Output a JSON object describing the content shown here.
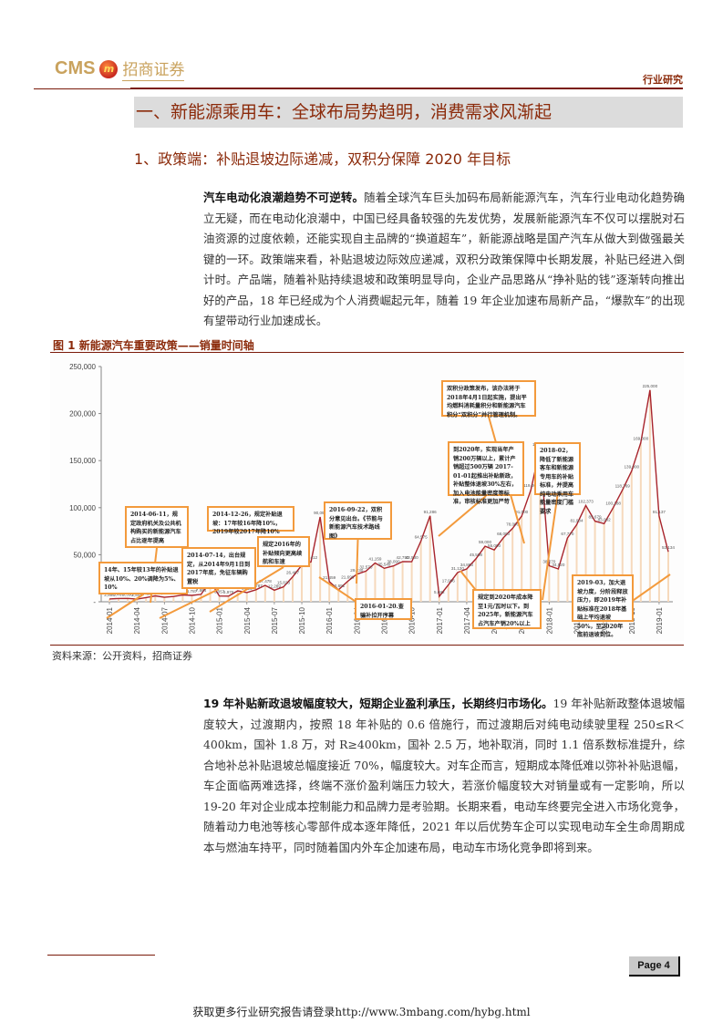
{
  "header": {
    "logo_latin": "CMS",
    "logo_mark": "m",
    "logo_cn": "招商证券",
    "category": "行业研究"
  },
  "section_title": "一、新能源乘用车：全球布局势趋明，消费需求风渐起",
  "sub_title": "1、政策端：补贴退坡边际递减，双积分保障 2020 年目标",
  "paragraph1": {
    "lead": "汽车电动化浪潮趋势不可逆转。",
    "body": "随着全球汽车巨头加码布局新能源汽车，汽车行业电动化趋势确立无疑，而在电动化浪潮中，中国已经具备较强的先发优势，发展新能源汽车不仅可以摆脱对石油资源的过度依赖，还能实现自主品牌的“换道超车”，新能源战略是国产汽车从做大到做强最关键的一环。政策端来看，补贴退坡边际效应递减，双积分政策保障中长期发展，补贴已经进入倒计时。产品端，随着补贴持续退坡和政策明显导向，企业产品思路从“挣补贴的钱”逐渐转向推出好的产品，18 年已经成为个人消费崛起元年，随着 19 年企业加速布局新产品，“爆款车”的出现有望带动行业加速成长。"
  },
  "figure": {
    "title": "图 1  新能源汽车重要政策——销量时间轴",
    "source": "资料来源：公开资料，招商证券"
  },
  "chart_data": {
    "type": "bar+line",
    "title": "新能源汽车重要政策——销量时间轴",
    "xlabel": "",
    "ylabel": "",
    "ylim": [
      0,
      250000
    ],
    "yticks": [
      "-",
      "50,000",
      "100,000",
      "150,000",
      "200,000",
      "250,000"
    ],
    "xtick_labels": [
      "2014-01",
      "2014-04",
      "2014-07",
      "2014-10",
      "2015-01",
      "2015-04",
      "2015-07",
      "2015-10",
      "2016-01",
      "2016-04",
      "2016-07",
      "2016-10",
      "2017-01",
      "2017-04",
      "2017-07",
      "2017-10",
      "2018-01",
      "2018-04",
      "2018-07",
      "2018-10",
      "2019-01"
    ],
    "x": [
      "2014-01",
      "2014-02",
      "2014-03",
      "2014-04",
      "2014-05",
      "2014-06",
      "2014-07",
      "2014-08",
      "2014-09",
      "2014-10",
      "2014-11",
      "2014-12",
      "2015-01",
      "2015-02",
      "2015-03",
      "2015-04",
      "2015-05",
      "2015-06",
      "2015-07",
      "2015-08",
      "2015-09",
      "2015-10",
      "2015-11",
      "2015-12",
      "2016-01",
      "2016-02",
      "2016-03",
      "2016-04",
      "2016-05",
      "2016-06",
      "2016-07",
      "2016-08",
      "2016-09",
      "2016-10",
      "2016-11",
      "2016-12",
      "2017-01",
      "2017-02",
      "2017-03",
      "2017-04",
      "2017-05",
      "2017-06",
      "2017-07",
      "2017-08",
      "2017-09",
      "2017-10",
      "2017-11",
      "2017-12",
      "2018-01",
      "2018-02",
      "2018-03",
      "2018-04",
      "2018-05",
      "2018-06",
      "2018-07",
      "2018-08",
      "2018-09",
      "2018-10",
      "2018-11",
      "2018-12",
      "2019-01",
      "2019-02"
    ],
    "series": [
      {
        "name": "新能源汽车月销量",
        "values": [
          2996,
          3469,
          3558,
          2848,
          4418,
          6260,
          4712,
          5613,
          7152,
          6787,
          7864,
          21815,
          6057,
          5976,
          11651,
          9806,
          12787,
          17478,
          12289,
          15823,
          26487,
          38903,
          42412,
          90095,
          21459,
          12691,
          21696,
          29230,
          32570,
          41159,
          35549,
          38090,
          42750,
          42530,
          64575,
          91286,
          5682,
          17996,
          31120,
          34863,
          45598,
          59000,
          55000,
          68000,
          78000,
          91000,
          119000,
          163000,
          38270,
          34920,
          67770,
          81904,
          102373,
          85679,
          83082,
          100188,
          118769,
          139000,
          169000,
          225000,
          91137,
          53134
        ]
      }
    ],
    "data_labels": [
      "2,996",
      "3,469",
      "3,558",
      "2,848",
      "4,418",
      "6,260",
      "4,712",
      "5,613",
      "7,152",
      "6,787",
      "7,864",
      "21,815",
      "6,057",
      "5,976",
      "11,651",
      "9,806",
      "12,787",
      "17,478",
      "12,289",
      "15,823",
      "26,487",
      "38,903",
      "42,412",
      "90,095",
      "21,459",
      "12,691",
      "21,696",
      "29,230",
      "32,570",
      "41,159",
      "35,549",
      "38,090",
      "42,750",
      "42,530",
      "64,575",
      "91,286",
      "5,682",
      "17,996",
      "31,120",
      "34,863",
      "45,598",
      "59,000",
      "55,000",
      "68,000",
      "78,000",
      "91,000",
      "119,000",
      "163,000",
      "38,270",
      "34,920",
      "67,770",
      "81,904",
      "102,373",
      "85,679",
      "83,082",
      "100,188",
      "118,769",
      "139,000",
      "169,000",
      "225,000",
      "91,137",
      "53,134"
    ],
    "annotations": [
      {
        "id": "a1",
        "date_index": 1,
        "text": "14年、15年较13年的补贴退坡从10%、20%调降为5%、10%"
      },
      {
        "id": "a2",
        "date_index": 5,
        "text": "2014-06-11，规定政府机关及公共机构购买的新能源汽车占比逐年提高"
      },
      {
        "id": "a3",
        "date_index": 6,
        "text": "2014-07-14，出台规定，从2014年9月1日到2017年底，免征车辆购置税"
      },
      {
        "id": "a4",
        "date_index": 11,
        "text": "2014-12-26，规定补贴退坡：17年较16年降10%，2019年较2017年降10%"
      },
      {
        "id": "a5",
        "date_index": 15,
        "text": "规定2016年的补贴倾向更高续航和车速"
      },
      {
        "id": "a6",
        "date_index": 24,
        "text": "2016-01-20.查骗补拉开序幕"
      },
      {
        "id": "a7",
        "date_index": 32,
        "text": "2016-09-22，双积分意见出台。《节能与新能源汽车技术路线图》"
      },
      {
        "id": "a8",
        "date_index": 35,
        "text": "到2020年，实现当年产销200万辆以上，累计产销超过500万辆 2017-01-01起推出补贴新政，补贴整体退坡30%左右，加入电池能量密度等标准，审核标准更加严苛"
      },
      {
        "id": "a9",
        "date_index": 39,
        "text": "规定到2020年成本降至1元/瓦时以下。到2025年，新能源汽车占汽车产销20%以上"
      },
      {
        "id": "a10",
        "date_index": 45,
        "text": "双积分政策发布，该办法将于2018年4月1日起实施，提出平均燃料消耗量积分和新能源汽车积分“双积分”并行管理机制。"
      },
      {
        "id": "a11",
        "date_index": 49,
        "text": "2018-02，降低了新能源客车和新能源专用车的补贴标准，并提高纯电动乘用车能量密度门槛要求"
      },
      {
        "id": "a12",
        "date_index": 62,
        "text": "2019-03，加大退坡力度，分阶段释放压力，即2019年补贴标准在2018年基础上平均退坡50%，至2020年底前退坡到位。"
      }
    ],
    "colors": {
      "line": "#a8242c",
      "bar": "#f6d9bc",
      "callout_border": "#f39a3c",
      "axis": "#888888"
    }
  },
  "paragraph2": {
    "lead": "19 年补贴新政退坡幅度较大，短期企业盈利承压，长期终归市场化。",
    "body": "19 年补贴新政整体退坡幅度较大，过渡期内，按照 18 年补贴的 0.6 倍施行，而过渡期后对纯电动续驶里程 250≤R＜400km，国补 1.8 万，对 R≥400km，国补 2.5 万，地补取消，同时 1.1 倍系数标准提升，综合地补总补贴退坡总幅度接近 70%，幅度较大。对车企而言，短期成本降低难以弥补补贴退幅，车企面临两难选择，终端不涨价盈利端压力较大，若涨价幅度较大对销量或有一定影响，所以 19-20 年对企业成本控制能力和品牌力是考验期。长期来看，电动车终要完全进入市场化竞争，随着动力电池等核心零部件成本逐年降低，2021 年以后优势车企可以实现电动车全生命周期成本与燃油车持平，同时随着国内外车企加速布局，电动车市场化竞争即将到来。"
  },
  "footer": {
    "page_label": "Page 4",
    "promo": "获取更多行业研究报告请登录http://www.3mbang.com/hybg.html"
  }
}
